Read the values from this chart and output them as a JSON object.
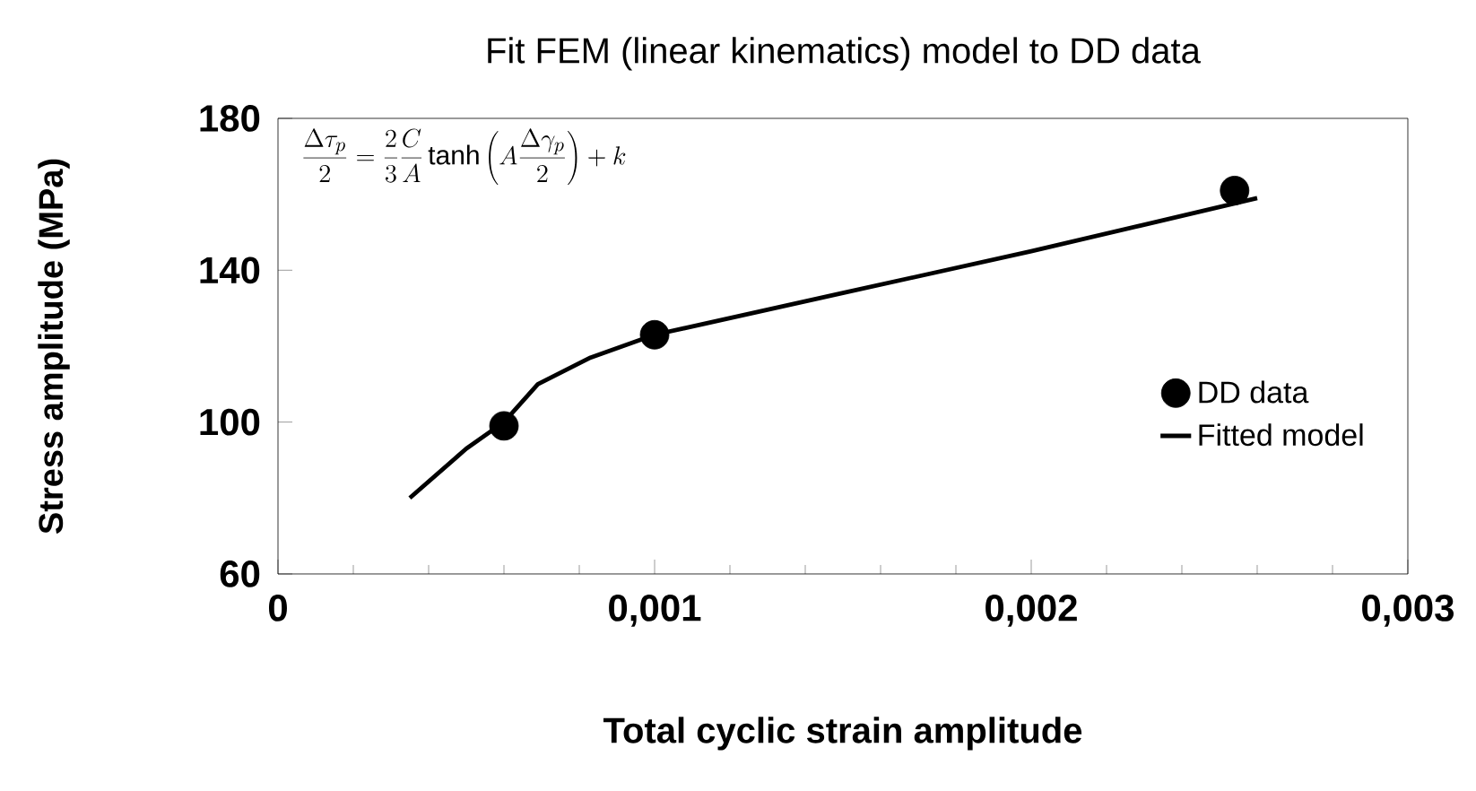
{
  "chart_data": {
    "type": "scatter",
    "title": "Fit FEM (linear kinematics) model to DD data",
    "xlabel": "Total cyclic strain amplitude",
    "ylabel": "Stress amplitude  (MPa)",
    "xlim": [
      0,
      0.003
    ],
    "ylim": [
      60,
      180
    ],
    "xticks": [
      0,
      {
        "value": 0.001,
        "label": "0,001"
      },
      {
        "value": 0.002,
        "label": "0,002"
      },
      {
        "value": 0.003,
        "label": "0,003"
      }
    ],
    "yticks": [
      60,
      100,
      140,
      180
    ],
    "annotations": [
      "\\frac{\\Delta\\tau_p}{2}=\\frac{2}{3}\\frac{C}{A}\\tanh\\left(A\\frac{\\Delta\\gamma_p}{2}\\right)+k"
    ],
    "legend": "right",
    "series": [
      {
        "name": "DD data",
        "marker": "circle",
        "color": "#000000",
        "x": [
          0.0006,
          0.001,
          0.00254
        ],
        "values": [
          99,
          123,
          161
        ]
      },
      {
        "name": "Fitted model",
        "type": "line",
        "marker": "none",
        "line_style": "solid",
        "color": "#000000",
        "x": [
          0.00035,
          0.0005,
          0.0006,
          0.00069,
          0.00083,
          0.001,
          0.0015,
          0.002,
          0.0026
        ],
        "values": [
          80,
          93,
          100,
          110,
          117,
          123,
          134,
          145,
          159
        ]
      }
    ]
  }
}
